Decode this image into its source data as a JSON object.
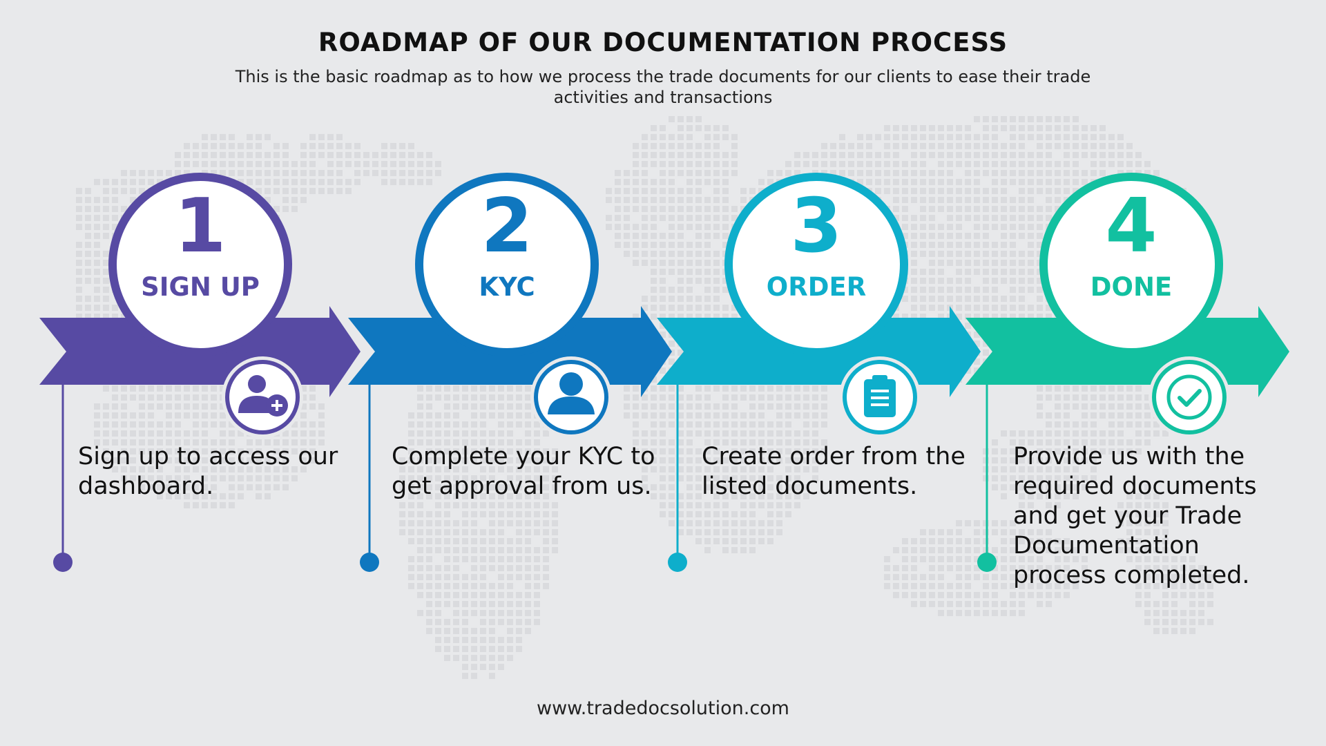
{
  "header": {
    "title": "ROADMAP OF OUR DOCUMENTATION PROCESS",
    "subtitle": "This is the basic roadmap as to how we process the trade documents for our clients to ease their trade activities and transactions"
  },
  "steps": [
    {
      "number": "1",
      "label": "SIGN UP",
      "description": "Sign up to access our dashboard.",
      "color": "#574aa3",
      "icon": "add-user-icon"
    },
    {
      "number": "2",
      "label": "KYC",
      "description": "Complete your KYC to get approval from us.",
      "color": "#0f77bf",
      "icon": "user-icon"
    },
    {
      "number": "3",
      "label": "ORDER",
      "description": "Create order from the listed documents.",
      "color": "#0eaecb",
      "icon": "clipboard-icon"
    },
    {
      "number": "4",
      "label": "DONE",
      "description": "Provide us with the required documents and get your Trade Documentation process completed.",
      "color": "#12c0a0",
      "icon": "check-circle-icon"
    }
  ],
  "footer": {
    "website": "www.tradedocsolution.com"
  }
}
